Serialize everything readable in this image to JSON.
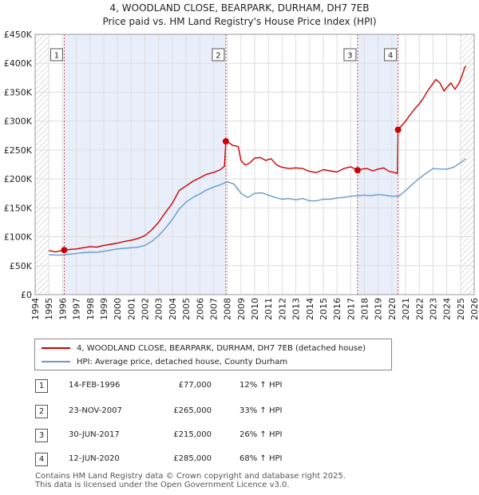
{
  "title_line1": "4, WOODLAND CLOSE, BEARPARK, DURHAM, DH7 7EB",
  "title_line2": "Price paid vs. HM Land Registry's House Price Index (HPI)",
  "chart_data": {
    "type": "line",
    "xlim": [
      1994,
      2026
    ],
    "ylim": [
      0,
      450000
    ],
    "x_ticks": [
      "1994",
      "1995",
      "1996",
      "1997",
      "1998",
      "1999",
      "2000",
      "2001",
      "2002",
      "2003",
      "2004",
      "2005",
      "2006",
      "2007",
      "2008",
      "2009",
      "2010",
      "2011",
      "2012",
      "2013",
      "2014",
      "2015",
      "2016",
      "2017",
      "2018",
      "2019",
      "2020",
      "2021",
      "2022",
      "2023",
      "2024",
      "2025",
      "2026"
    ],
    "y_ticks": [
      {
        "value": 0,
        "label": "£0"
      },
      {
        "value": 50000,
        "label": "£50K"
      },
      {
        "value": 100000,
        "label": "£100K"
      },
      {
        "value": 150000,
        "label": "£150K"
      },
      {
        "value": 200000,
        "label": "£200K"
      },
      {
        "value": 250000,
        "label": "£250K"
      },
      {
        "value": 300000,
        "label": "£300K"
      },
      {
        "value": 350000,
        "label": "£350K"
      },
      {
        "value": 400000,
        "label": "£400K"
      },
      {
        "value": 450000,
        "label": "£450K"
      }
    ],
    "shaded_ranges": [
      [
        1996.12,
        2007.9
      ],
      [
        2017.5,
        2020.45
      ]
    ],
    "hatched_before": 1995.0,
    "hatched_after": 2025.0,
    "series": [
      {
        "name": "4, WOODLAND CLOSE, BEARPARK, DURHAM, DH7 7EB (detached house)",
        "color": "#cc0000",
        "points": [
          [
            1995.0,
            76000
          ],
          [
            1995.5,
            74000
          ],
          [
            1996.0,
            76500
          ],
          [
            1996.12,
            77000
          ],
          [
            1996.5,
            78000
          ],
          [
            1997.0,
            79000
          ],
          [
            1997.5,
            81000
          ],
          [
            1998.0,
            83000
          ],
          [
            1998.5,
            82000
          ],
          [
            1999.0,
            85000
          ],
          [
            1999.5,
            87000
          ],
          [
            2000.0,
            89000
          ],
          [
            2000.5,
            92000
          ],
          [
            2001.0,
            94000
          ],
          [
            2001.5,
            97000
          ],
          [
            2002.0,
            102000
          ],
          [
            2002.5,
            112000
          ],
          [
            2003.0,
            125000
          ],
          [
            2003.5,
            142000
          ],
          [
            2004.0,
            158000
          ],
          [
            2004.5,
            180000
          ],
          [
            2005.0,
            188000
          ],
          [
            2005.5,
            196000
          ],
          [
            2006.0,
            202000
          ],
          [
            2006.5,
            208000
          ],
          [
            2007.0,
            211000
          ],
          [
            2007.5,
            216000
          ],
          [
            2007.8,
            222000
          ],
          [
            2007.9,
            265000
          ],
          [
            2008.1,
            263000
          ],
          [
            2008.4,
            258000
          ],
          [
            2008.8,
            256000
          ],
          [
            2009.0,
            232000
          ],
          [
            2009.3,
            224000
          ],
          [
            2009.6,
            227000
          ],
          [
            2010.0,
            236000
          ],
          [
            2010.4,
            237000
          ],
          [
            2010.8,
            232000
          ],
          [
            2011.2,
            235000
          ],
          [
            2011.6,
            224000
          ],
          [
            2012.0,
            220000
          ],
          [
            2012.5,
            218000
          ],
          [
            2013.0,
            219000
          ],
          [
            2013.5,
            218000
          ],
          [
            2014.0,
            213000
          ],
          [
            2014.5,
            211000
          ],
          [
            2015.0,
            216000
          ],
          [
            2015.5,
            214000
          ],
          [
            2016.0,
            212000
          ],
          [
            2016.5,
            218000
          ],
          [
            2017.0,
            221000
          ],
          [
            2017.5,
            215000
          ],
          [
            2017.8,
            217000
          ],
          [
            2018.2,
            218000
          ],
          [
            2018.6,
            214000
          ],
          [
            2019.0,
            217000
          ],
          [
            2019.4,
            219000
          ],
          [
            2019.8,
            213000
          ],
          [
            2020.2,
            211000
          ],
          [
            2020.4,
            209000
          ],
          [
            2020.45,
            285000
          ],
          [
            2020.7,
            292000
          ],
          [
            2021.0,
            300000
          ],
          [
            2021.3,
            310000
          ],
          [
            2021.7,
            322000
          ],
          [
            2022.0,
            330000
          ],
          [
            2022.3,
            340000
          ],
          [
            2022.6,
            352000
          ],
          [
            2022.9,
            362000
          ],
          [
            2023.2,
            372000
          ],
          [
            2023.5,
            366000
          ],
          [
            2023.8,
            352000
          ],
          [
            2024.0,
            358000
          ],
          [
            2024.3,
            366000
          ],
          [
            2024.6,
            355000
          ],
          [
            2024.9,
            366000
          ],
          [
            2025.1,
            378000
          ],
          [
            2025.3,
            392000
          ],
          [
            2025.4,
            395000
          ]
        ]
      },
      {
        "name": "HPI: Average price, detached house, County Durham",
        "color": "#6699cc",
        "points": [
          [
            1995.0,
            69000
          ],
          [
            1995.5,
            68500
          ],
          [
            1996.0,
            68500
          ],
          [
            1996.5,
            70000
          ],
          [
            1997.0,
            71000
          ],
          [
            1997.5,
            72500
          ],
          [
            1998.0,
            73500
          ],
          [
            1998.5,
            73000
          ],
          [
            1999.0,
            75000
          ],
          [
            1999.5,
            77000
          ],
          [
            2000.0,
            79000
          ],
          [
            2000.5,
            80000
          ],
          [
            2001.0,
            81000
          ],
          [
            2001.5,
            82000
          ],
          [
            2002.0,
            85000
          ],
          [
            2002.5,
            92000
          ],
          [
            2003.0,
            102000
          ],
          [
            2003.5,
            115000
          ],
          [
            2004.0,
            130000
          ],
          [
            2004.5,
            148000
          ],
          [
            2005.0,
            160000
          ],
          [
            2005.5,
            168000
          ],
          [
            2006.0,
            174000
          ],
          [
            2006.5,
            181000
          ],
          [
            2007.0,
            186000
          ],
          [
            2007.5,
            190000
          ],
          [
            2008.0,
            195000
          ],
          [
            2008.5,
            191000
          ],
          [
            2009.0,
            175000
          ],
          [
            2009.5,
            168000
          ],
          [
            2010.0,
            175000
          ],
          [
            2010.5,
            176000
          ],
          [
            2011.0,
            172000
          ],
          [
            2011.5,
            168000
          ],
          [
            2012.0,
            165000
          ],
          [
            2012.5,
            166000
          ],
          [
            2013.0,
            164000
          ],
          [
            2013.5,
            166000
          ],
          [
            2014.0,
            162000
          ],
          [
            2014.5,
            162000
          ],
          [
            2015.0,
            165000
          ],
          [
            2015.5,
            165000
          ],
          [
            2016.0,
            167000
          ],
          [
            2016.5,
            168000
          ],
          [
            2017.0,
            170000
          ],
          [
            2017.5,
            171000
          ],
          [
            2018.0,
            172000
          ],
          [
            2018.5,
            171000
          ],
          [
            2019.0,
            173000
          ],
          [
            2019.5,
            172000
          ],
          [
            2020.0,
            170000
          ],
          [
            2020.5,
            170000
          ],
          [
            2021.0,
            180000
          ],
          [
            2021.5,
            191000
          ],
          [
            2022.0,
            201000
          ],
          [
            2022.5,
            210000
          ],
          [
            2023.0,
            218000
          ],
          [
            2023.5,
            217000
          ],
          [
            2024.0,
            217000
          ],
          [
            2024.5,
            220000
          ],
          [
            2025.0,
            228000
          ],
          [
            2025.4,
            235000
          ]
        ]
      }
    ],
    "sales": [
      {
        "id": "1",
        "x": 1996.12,
        "price": 77000
      },
      {
        "id": "2",
        "x": 2007.9,
        "price": 265000
      },
      {
        "id": "3",
        "x": 2017.5,
        "price": 215000
      },
      {
        "id": "4",
        "x": 2020.45,
        "price": 285000
      }
    ]
  },
  "legend": {
    "red_label": "4, WOODLAND CLOSE, BEARPARK, DURHAM, DH7 7EB (detached house)",
    "blue_label": "HPI: Average price, detached house, County Durham"
  },
  "transactions": [
    {
      "num": "1",
      "date": "14-FEB-1996",
      "price": "£77,000",
      "hpi": "12% ↑ HPI"
    },
    {
      "num": "2",
      "date": "23-NOV-2007",
      "price": "£265,000",
      "hpi": "33% ↑ HPI"
    },
    {
      "num": "3",
      "date": "30-JUN-2017",
      "price": "£215,000",
      "hpi": "26% ↑ HPI"
    },
    {
      "num": "4",
      "date": "12-JUN-2020",
      "price": "£285,000",
      "hpi": "68% ↑ HPI"
    }
  ],
  "footer": {
    "line1": "Contains HM Land Registry data © Crown copyright and database right 2025.",
    "line2": "This data is licensed under the Open Government Licence v3.0."
  }
}
